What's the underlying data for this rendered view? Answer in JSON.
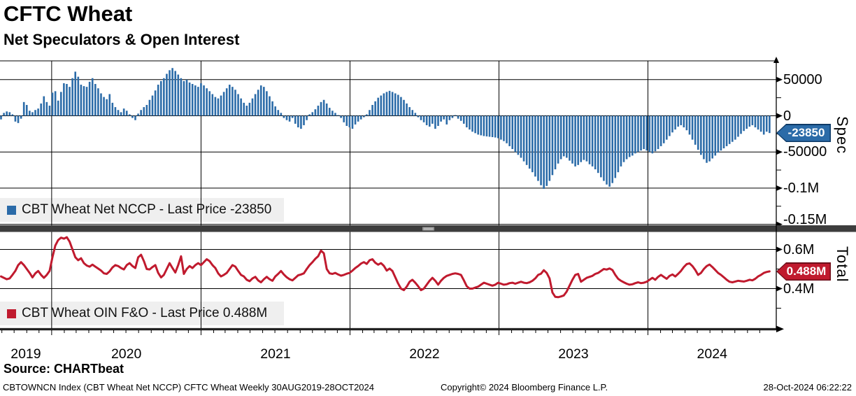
{
  "header": {
    "title": "CFTC Wheat",
    "subtitle": "Net Speculators & Open Interest"
  },
  "colors": {
    "bar_blue": "#2b6ba8",
    "tag_blue_border": "#0e3a66",
    "line_red": "#c01a2e",
    "tag_red_border": "#6e0e1a",
    "legend_bg": "#efefef",
    "separator": "#3d3d3d",
    "grip": "#969696",
    "grid": "#000000"
  },
  "panels": {
    "top": {
      "axis_title": "Spec",
      "ticks": [
        {
          "label": "50000",
          "value": 50000
        },
        {
          "label": "0",
          "value": 0
        },
        {
          "label": "-50000",
          "value": -50000
        },
        {
          "label": "-0.1M",
          "value": -100000
        },
        {
          "label": "-0.15M",
          "value": -150000
        }
      ],
      "legend_label": "CBT Wheat Net NCCP - Last Price -23850",
      "price_tag": "-23850"
    },
    "bottom": {
      "axis_title": "Total",
      "ticks": [
        {
          "label": "0.6M",
          "value": 0.6
        },
        {
          "label": "0.4M",
          "value": 0.4
        }
      ],
      "legend_label": "CBT Wheat OIN F&O - Last Price 0.488M",
      "price_tag": "0.488M"
    }
  },
  "x_axis": {
    "year_labels": [
      "2019",
      "2020",
      "2021",
      "2022",
      "2023",
      "2024"
    ]
  },
  "footer": {
    "source": "Source: CHARTbeat",
    "index_line": "CBTOWNCN Index (CBT Wheat Net NCCP) CFTC Wheat  Weekly 30AUG2019-28OCT2024",
    "copyright": "Copyright© 2024 Bloomberg Finance L.P.",
    "timestamp": "28-Oct-2024 06:22:22"
  },
  "chart_data": [
    {
      "type": "bar",
      "name": "CBT Wheat Net NCCP",
      "frequency": "Weekly",
      "x_start": "30AUG2019",
      "x_end": "28OCT2024",
      "last_price": -23850,
      "ylim": [
        -155000,
        76000
      ],
      "gridlines": [
        50000,
        0,
        -50000,
        -100000,
        -150000
      ],
      "minor_ticks": [
        25000,
        -25000,
        -75000,
        -125000
      ],
      "legend_position": "bottom-left-of-panel",
      "values": [
        -5000,
        4000,
        6000,
        5000,
        2000,
        -8000,
        -10000,
        -4000,
        19000,
        15000,
        7000,
        5000,
        8000,
        10000,
        17000,
        27000,
        19000,
        14000,
        32000,
        34000,
        21000,
        33000,
        45000,
        44000,
        40000,
        52000,
        61000,
        54000,
        43000,
        41000,
        40000,
        47000,
        52000,
        44000,
        38000,
        31000,
        26000,
        23000,
        30000,
        18000,
        12000,
        8000,
        5000,
        10000,
        7000,
        2000,
        -3000,
        -6000,
        3000,
        8000,
        12000,
        15000,
        22000,
        28000,
        35000,
        43000,
        48000,
        52000,
        58000,
        63000,
        66000,
        62000,
        57000,
        52000,
        48000,
        50000,
        46000,
        44000,
        42000,
        40000,
        45000,
        42000,
        38000,
        34000,
        30000,
        26000,
        24000,
        28000,
        33000,
        38000,
        43000,
        40000,
        36000,
        30000,
        24000,
        18000,
        14000,
        18000,
        24000,
        30000,
        36000,
        42000,
        40000,
        34000,
        27000,
        20000,
        13000,
        8000,
        4000,
        -3000,
        -6000,
        -8000,
        -3000,
        -11000,
        -16000,
        -18000,
        -13000,
        -6000,
        2000,
        5000,
        9000,
        14000,
        19000,
        22000,
        17000,
        11000,
        7000,
        4000,
        1000,
        -3000,
        -9000,
        -14000,
        -16000,
        -18000,
        -12000,
        -8000,
        -5000,
        -2000,
        2000,
        8000,
        15000,
        20000,
        25000,
        28000,
        31000,
        33000,
        34500,
        33000,
        31000,
        29000,
        26000,
        22000,
        17000,
        12000,
        8000,
        4000,
        -2000,
        -6000,
        -9000,
        -13000,
        -15000,
        -11000,
        -18000,
        -14000,
        -8000,
        -5000,
        -12000,
        -6000,
        -3000,
        1000,
        -4000,
        -7000,
        -11000,
        -16000,
        -19000,
        -22000,
        -24000,
        -26000,
        -27000,
        -28000,
        -28500,
        -29000,
        -29500,
        -30000,
        -31000,
        -33000,
        -35000,
        -38000,
        -42000,
        -46000,
        -50000,
        -54000,
        -58000,
        -63000,
        -68000,
        -73000,
        -78000,
        -84000,
        -90000,
        -96000,
        -101000,
        -97000,
        -90000,
        -82000,
        -74000,
        -66000,
        -60000,
        -56000,
        -58000,
        -62000,
        -66000,
        -70000,
        -68000,
        -64000,
        -61000,
        -63000,
        -67000,
        -70000,
        -74000,
        -79000,
        -85000,
        -90000,
        -95000,
        -98000,
        -93000,
        -86000,
        -78000,
        -70000,
        -64000,
        -60000,
        -57000,
        -55000,
        -52000,
        -50000,
        -48000,
        -46000,
        -48000,
        -50000,
        -52000,
        -49000,
        -46000,
        -42000,
        -38000,
        -33000,
        -28000,
        -23000,
        -19000,
        -15000,
        -13000,
        -16000,
        -20000,
        -26000,
        -33000,
        -40000,
        -47000,
        -54000,
        -60000,
        -65000,
        -63000,
        -59000,
        -55000,
        -51000,
        -48000,
        -45000,
        -42000,
        -39000,
        -36000,
        -33000,
        -29000,
        -25000,
        -21000,
        -18000,
        -15000,
        -13000,
        -16000,
        -19000,
        -22000,
        -26000,
        -22000,
        -23850
      ]
    },
    {
      "type": "line",
      "name": "CBT Wheat OIN F&O",
      "frequency": "Weekly",
      "x_start": "30AUG2019",
      "x_end": "28OCT2024",
      "unit": "M",
      "last_price": 0.488,
      "ylim": [
        0.195,
        0.6875
      ],
      "gridlines": [
        0.6,
        0.4
      ],
      "minor_ticks": [
        0.5,
        0.3
      ],
      "legend_position": "bottom-left-of-panel",
      "values": [
        0.462,
        0.455,
        0.448,
        0.452,
        0.47,
        0.49,
        0.52,
        0.535,
        0.52,
        0.5,
        0.48,
        0.457,
        0.478,
        0.49,
        0.47,
        0.455,
        0.47,
        0.49,
        0.56,
        0.62,
        0.648,
        0.66,
        0.655,
        0.662,
        0.64,
        0.6,
        0.56,
        0.545,
        0.555,
        0.53,
        0.518,
        0.512,
        0.522,
        0.512,
        0.502,
        0.492,
        0.478,
        0.475,
        0.488,
        0.508,
        0.52,
        0.515,
        0.505,
        0.498,
        0.52,
        0.53,
        0.515,
        0.505,
        0.56,
        0.573,
        0.54,
        0.5,
        0.498,
        0.51,
        0.52,
        0.48,
        0.457,
        0.47,
        0.5,
        0.53,
        0.505,
        0.482,
        0.52,
        0.565,
        0.475,
        0.5,
        0.515,
        0.505,
        0.52,
        0.53,
        0.52,
        0.535,
        0.55,
        0.54,
        0.52,
        0.505,
        0.478,
        0.462,
        0.47,
        0.48,
        0.5,
        0.52,
        0.512,
        0.49,
        0.47,
        0.462,
        0.445,
        0.438,
        0.452,
        0.46,
        0.442,
        0.432,
        0.448,
        0.46,
        0.448,
        0.44,
        0.462,
        0.475,
        0.49,
        0.472,
        0.458,
        0.448,
        0.442,
        0.455,
        0.468,
        0.472,
        0.478,
        0.5,
        0.52,
        0.535,
        0.552,
        0.565,
        0.594,
        0.58,
        0.5,
        0.478,
        0.475,
        0.48,
        0.472,
        0.466,
        0.47,
        0.476,
        0.48,
        0.492,
        0.505,
        0.515,
        0.528,
        0.535,
        0.526,
        0.545,
        0.55,
        0.532,
        0.522,
        0.53,
        0.516,
        0.492,
        0.502,
        0.49,
        0.458,
        0.426,
        0.4,
        0.392,
        0.41,
        0.435,
        0.445,
        0.43,
        0.412,
        0.392,
        0.4,
        0.42,
        0.44,
        0.455,
        0.44,
        0.42,
        0.44,
        0.455,
        0.465,
        0.47,
        0.475,
        0.478,
        0.475,
        0.47,
        0.442,
        0.412,
        0.4,
        0.4,
        0.405,
        0.41,
        0.42,
        0.43,
        0.425,
        0.42,
        0.415,
        0.42,
        0.43,
        0.425,
        0.42,
        0.422,
        0.428,
        0.43,
        0.425,
        0.43,
        0.435,
        0.43,
        0.428,
        0.432,
        0.44,
        0.452,
        0.47,
        0.476,
        0.494,
        0.48,
        0.452,
        0.38,
        0.358,
        0.356,
        0.36,
        0.365,
        0.385,
        0.415,
        0.445,
        0.47,
        0.475,
        0.435,
        0.445,
        0.455,
        0.46,
        0.465,
        0.475,
        0.48,
        0.49,
        0.5,
        0.497,
        0.503,
        0.495,
        0.47,
        0.45,
        0.44,
        0.432,
        0.425,
        0.42,
        0.422,
        0.428,
        0.432,
        0.428,
        0.43,
        0.435,
        0.445,
        0.455,
        0.445,
        0.46,
        0.47,
        0.46,
        0.45,
        0.465,
        0.472,
        0.462,
        0.475,
        0.49,
        0.51,
        0.525,
        0.529,
        0.515,
        0.495,
        0.47,
        0.48,
        0.5,
        0.515,
        0.523,
        0.51,
        0.495,
        0.48,
        0.47,
        0.458,
        0.445,
        0.435,
        0.432,
        0.436,
        0.44,
        0.438,
        0.436,
        0.44,
        0.445,
        0.442,
        0.45,
        0.462,
        0.47,
        0.48,
        0.485,
        0.488
      ]
    }
  ]
}
